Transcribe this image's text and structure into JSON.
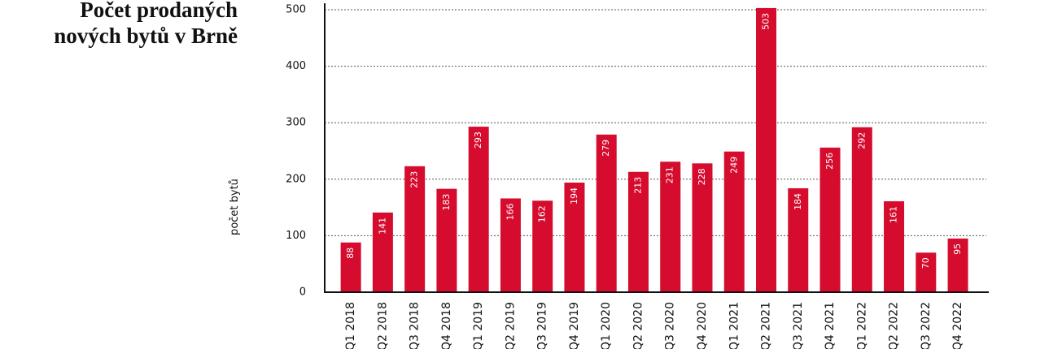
{
  "chart_data": {
    "type": "bar",
    "title": "Počet prodaných nových bytů v Brně",
    "y_label": "počet bytů",
    "categories": [
      "Q1 2018",
      "Q2 2018",
      "Q3 2018",
      "Q4 2018",
      "Q1 2019",
      "Q2 2019",
      "Q3 2019",
      "Q4 2019",
      "Q1 2020",
      "Q2 2020",
      "Q3 2020",
      "Q4 2020",
      "Q1 2021",
      "Q2 2021",
      "Q3 2021",
      "Q4 2021",
      "Q1 2022",
      "Q2 2022",
      "Q3 2022",
      "Q4 2022"
    ],
    "values": [
      88,
      141,
      223,
      183,
      293,
      166,
      162,
      194,
      279,
      213,
      231,
      228,
      249,
      503,
      184,
      256,
      292,
      161,
      70,
      95
    ],
    "color": "#d50c2d",
    "ylim": [
      0,
      500
    ],
    "yticks": [
      0,
      100,
      200,
      300,
      400,
      500
    ],
    "grid": true
  }
}
